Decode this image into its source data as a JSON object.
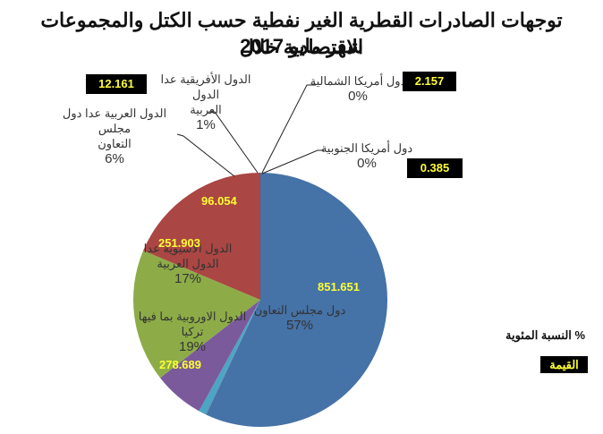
{
  "title": {
    "line1": "توجهات الصادرات القطرية الغير نفطية حسب الكتل والمجموعات الاقتصادية خلال",
    "line2": "شهر مايو 2017"
  },
  "legend": {
    "percent_label": "% النسبة المئوية",
    "value_label": "القيمة"
  },
  "chart_data": {
    "type": "pie",
    "title": "توجهات الصادرات القطرية الغير نفطية حسب الكتل والمجموعات الاقتصادية خلال شهر مايو 2017",
    "categories": [
      "دول مجلس التعاون",
      "دول أمريكا الجنوبية",
      "دول أمريكا الشمالية",
      "الدول الأفريقية عدا الدول العربية",
      "الدول العربية عدا دول مجلس التعاون",
      "الدول الأسيوية عدا الدول العربية",
      "الدول الاوروبية بما فيها تركيا"
    ],
    "values": [
      851.651,
      0.385,
      2.157,
      12.161,
      96.054,
      251.903,
      278.689
    ],
    "percentages": [
      "57%",
      "0%",
      "0%",
      "1%",
      "6%",
      "17%",
      "19%"
    ],
    "colors": [
      "#4572a7",
      "#b9b4a8",
      "#3c8fb8",
      "#4aa6c4",
      "#7a5a9b",
      "#8dac48",
      "#aa4643"
    ],
    "legend_position": "right"
  },
  "slices": [
    {
      "name": "دول مجلس التعاون",
      "name_lines": [
        "دول مجلس التعاون"
      ],
      "pct": "57%",
      "value": "851.651"
    },
    {
      "name": "دول أمريكا الجنوبية",
      "name_lines": [
        "دول أمريكا الجنوبية"
      ],
      "pct": "0%",
      "value": "0.385"
    },
    {
      "name": "دول أمريكا الشمالية",
      "name_lines": [
        "دول أمريكا الشمالية"
      ],
      "pct": "0%",
      "value": "2.157"
    },
    {
      "name": "الدول الأفريقية عدا الدول العربية",
      "name_lines": [
        "الدول الأفريقية عدا الدول",
        "العربية"
      ],
      "pct": "1%",
      "value": "12.161"
    },
    {
      "name": "الدول العربية عدا دول مجلس التعاون",
      "name_lines": [
        "الدول العربية عدا دول مجلس",
        "التعاون"
      ],
      "pct": "6%",
      "value": "96.054"
    },
    {
      "name": "الدول الأسيوية عدا الدول العربية",
      "name_lines": [
        "الدول الأسيوية عدا",
        "الدول العربية"
      ],
      "pct": "17%",
      "value": "251.903"
    },
    {
      "name": "الدول الاوروبية بما فيها تركيا",
      "name_lines": [
        "الدول الاوروبية بما فيها",
        "تركيا"
      ],
      "pct": "19%",
      "value": "278.689"
    }
  ]
}
